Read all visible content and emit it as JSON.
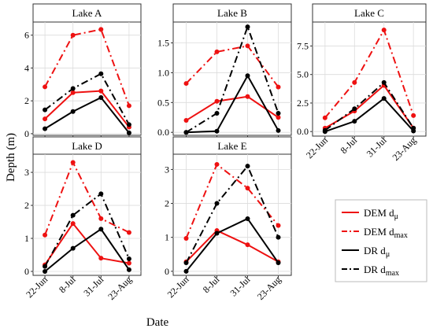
{
  "chart_data": {
    "type": "line",
    "xlabel": "Date",
    "ylabel": "Depth (m)",
    "categories": [
      "22-Jun",
      "8-Jul",
      "31-Jul",
      "23-Aug"
    ],
    "legend": {
      "placement": "right",
      "entries": [
        {
          "name": "DEM",
          "sub": "μ",
          "color": "#ee1111",
          "dash": "solid"
        },
        {
          "name": "DEM",
          "sub": "max",
          "color": "#ee1111",
          "dash": "dashdot"
        },
        {
          "name": "DR",
          "sub": "μ",
          "color": "#000000",
          "dash": "solid"
        },
        {
          "name": "DR",
          "sub": "max",
          "color": "#000000",
          "dash": "dashdot"
        }
      ]
    },
    "panels": [
      {
        "title": "Lake A",
        "ylim": [
          -0.1,
          6.8
        ],
        "yticks": [
          "0",
          "2",
          "4",
          "6"
        ],
        "ytick_values": [
          0,
          2,
          4,
          6
        ],
        "series": [
          {
            "values": [
              0.9,
              2.5,
              2.6,
              0.4
            ]
          },
          {
            "values": [
              2.85,
              6.0,
              6.35,
              1.7
            ]
          },
          {
            "values": [
              0.3,
              1.35,
              2.2,
              0.05
            ]
          },
          {
            "values": [
              1.45,
              2.75,
              3.65,
              0.55
            ]
          }
        ]
      },
      {
        "title": "Lake B",
        "ylim": [
          -0.05,
          1.85
        ],
        "yticks": [
          "0.0",
          "0.5",
          "1.0",
          "1.5"
        ],
        "ytick_values": [
          0,
          0.5,
          1.0,
          1.5
        ],
        "series": [
          {
            "values": [
              0.2,
              0.52,
              0.6,
              0.25
            ]
          },
          {
            "values": [
              0.82,
              1.35,
              1.45,
              0.76
            ]
          },
          {
            "values": [
              0.0,
              0.02,
              0.95,
              0.03
            ]
          },
          {
            "values": [
              0.0,
              0.32,
              1.77,
              0.32
            ]
          }
        ]
      },
      {
        "title": "Lake C",
        "ylim": [
          -0.4,
          9.6
        ],
        "yticks": [
          "0.0",
          "2.5",
          "5.0",
          "7.5"
        ],
        "ytick_values": [
          0,
          2.5,
          5.0,
          7.5
        ],
        "series": [
          {
            "values": [
              0.3,
              1.8,
              4.05,
              0.3
            ]
          },
          {
            "values": [
              1.2,
              4.3,
              8.9,
              1.4
            ]
          },
          {
            "values": [
              0.0,
              0.9,
              2.9,
              0.05
            ]
          },
          {
            "values": [
              0.1,
              2.0,
              4.3,
              0.3
            ]
          }
        ]
      },
      {
        "title": "Lake D",
        "ylim": [
          -0.12,
          3.55
        ],
        "yticks": [
          "0",
          "1",
          "2",
          "3"
        ],
        "ytick_values": [
          0,
          1,
          2,
          3
        ],
        "series": [
          {
            "values": [
              0.2,
              1.45,
              0.4,
              0.25
            ]
          },
          {
            "values": [
              1.1,
              3.3,
              1.6,
              1.18
            ]
          },
          {
            "values": [
              0.0,
              0.7,
              1.28,
              0.05
            ]
          },
          {
            "values": [
              0.15,
              1.7,
              2.35,
              0.38
            ]
          }
        ]
      },
      {
        "title": "Lake E",
        "ylim": [
          -0.12,
          3.45
        ],
        "yticks": [
          "0",
          "1",
          "2",
          "3"
        ],
        "ytick_values": [
          0,
          1,
          2,
          3
        ],
        "series": [
          {
            "values": [
              0.28,
              1.2,
              0.78,
              0.28
            ]
          },
          {
            "values": [
              0.97,
              3.15,
              2.45,
              1.35
            ]
          },
          {
            "values": [
              0.0,
              1.12,
              1.55,
              0.25
            ]
          },
          {
            "values": [
              0.25,
              2.0,
              3.1,
              1.0
            ]
          }
        ]
      }
    ]
  }
}
